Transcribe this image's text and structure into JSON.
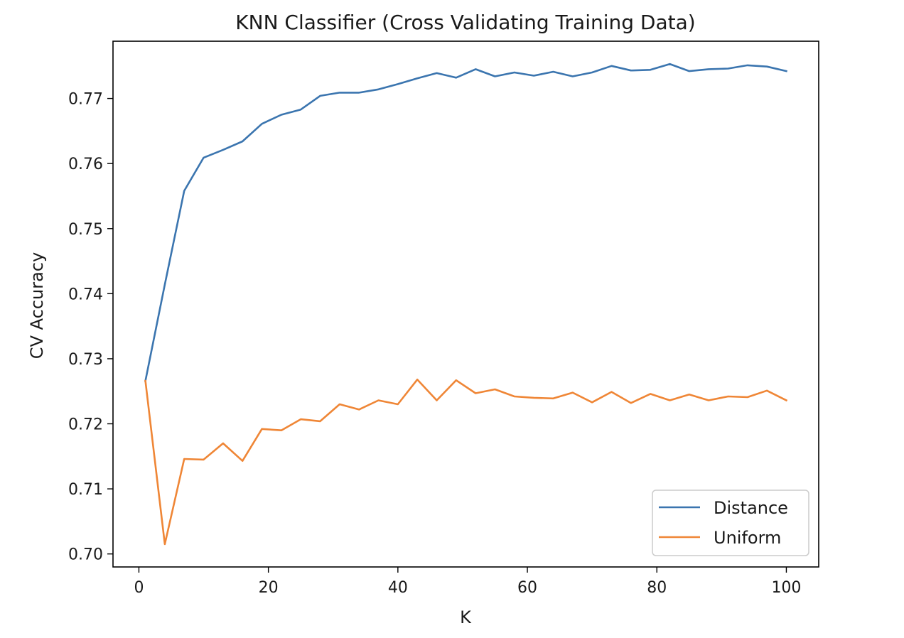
{
  "chart_data": {
    "type": "line",
    "title": "KNN Classifier (Cross Validating Training Data)",
    "xlabel": "K",
    "ylabel": "CV Accuracy",
    "xlim": [
      -4,
      105
    ],
    "ylim": [
      0.698,
      0.7788
    ],
    "xticks": [
      0,
      20,
      40,
      60,
      80,
      100
    ],
    "xtick_labels": [
      "0",
      "20",
      "40",
      "60",
      "80",
      "100"
    ],
    "yticks": [
      0.7,
      0.71,
      0.72,
      0.73,
      0.74,
      0.75,
      0.76,
      0.77
    ],
    "ytick_labels": [
      "0.70",
      "0.71",
      "0.72",
      "0.73",
      "0.74",
      "0.75",
      "0.76",
      "0.77"
    ],
    "grid": false,
    "legend_position": "lower-right",
    "x": [
      1,
      4,
      7,
      10,
      13,
      16,
      19,
      22,
      25,
      28,
      31,
      34,
      37,
      40,
      43,
      46,
      49,
      52,
      55,
      58,
      61,
      64,
      67,
      70,
      73,
      76,
      79,
      82,
      85,
      88,
      91,
      94,
      97,
      100
    ],
    "series": [
      {
        "name": "Distance",
        "color": "#3b75af",
        "values": [
          0.7266,
          0.7414,
          0.7558,
          0.7609,
          0.7621,
          0.7634,
          0.7661,
          0.7675,
          0.7683,
          0.7704,
          0.7709,
          0.7709,
          0.7714,
          0.7722,
          0.7731,
          0.7739,
          0.7732,
          0.7745,
          0.7734,
          0.774,
          0.7735,
          0.7741,
          0.7734,
          0.774,
          0.775,
          0.7743,
          0.7744,
          0.7753,
          0.7742,
          0.7745,
          0.7746,
          0.7751,
          0.7749,
          0.7742
        ]
      },
      {
        "name": "Uniform",
        "color": "#ef8636",
        "values": [
          0.7266,
          0.7015,
          0.7146,
          0.7145,
          0.717,
          0.7143,
          0.7192,
          0.719,
          0.7207,
          0.7204,
          0.723,
          0.7222,
          0.7236,
          0.723,
          0.7268,
          0.7236,
          0.7267,
          0.7247,
          0.7253,
          0.7242,
          0.724,
          0.7239,
          0.7248,
          0.7233,
          0.7249,
          0.7232,
          0.7246,
          0.7236,
          0.7245,
          0.7236,
          0.7242,
          0.7241,
          0.7251,
          0.7236
        ]
      }
    ]
  }
}
